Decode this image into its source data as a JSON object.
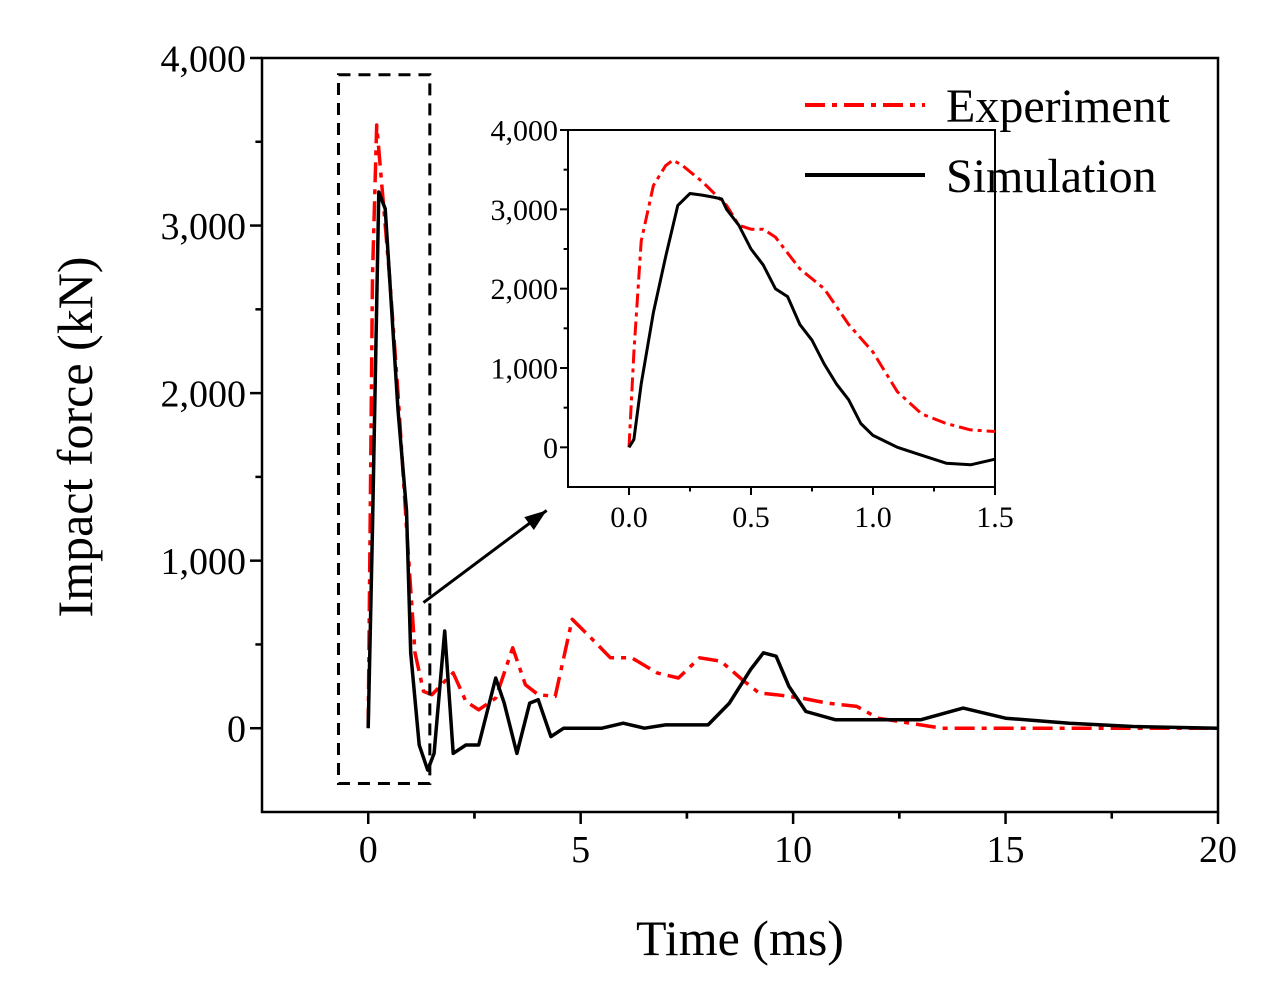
{
  "colors": {
    "experiment": "#ff0000",
    "simulation": "#000000",
    "axis": "#000000",
    "background": "#ffffff"
  },
  "chart_data": [
    {
      "type": "line",
      "role": "main",
      "xlabel": "Time (ms)",
      "ylabel": "Impact force (kN)",
      "xlim": [
        -2.5,
        20
      ],
      "ylim": [
        -500,
        4000
      ],
      "xticks": [
        0,
        5,
        10,
        15,
        20
      ],
      "xtick_labels": [
        "0",
        "5",
        "10",
        "15",
        "20"
      ],
      "yticks": [
        0,
        1000,
        2000,
        3000,
        4000
      ],
      "ytick_labels": [
        "0",
        "1,000",
        "2,000",
        "3,000",
        "4,000"
      ],
      "legend_position": "top-right",
      "legend": [
        "Experiment",
        "Simulation"
      ],
      "series": [
        {
          "name": "Experiment",
          "style": "dash-dot",
          "x": [
            0,
            0.1,
            0.2,
            0.3,
            0.5,
            0.7,
            0.9,
            1.1,
            1.3,
            1.5,
            1.8,
            2.0,
            2.3,
            2.6,
            3.0,
            3.4,
            3.7,
            4.0,
            4.4,
            4.8,
            5.2,
            5.7,
            6.2,
            6.8,
            7.3,
            7.8,
            8.3,
            8.8,
            9.2,
            9.6,
            10.2,
            10.8,
            11.5,
            12.0,
            12.5,
            13.5,
            15.0,
            17.0,
            20.0
          ],
          "y": [
            0,
            2700,
            3600,
            3300,
            2700,
            2000,
            1200,
            450,
            220,
            200,
            280,
            330,
            160,
            110,
            180,
            480,
            260,
            200,
            190,
            650,
            550,
            420,
            420,
            330,
            300,
            420,
            400,
            290,
            210,
            200,
            180,
            150,
            130,
            60,
            40,
            0,
            0,
            0,
            0
          ]
        },
        {
          "name": "Simulation",
          "style": "solid",
          "x": [
            0,
            0.1,
            0.25,
            0.4,
            0.5,
            0.7,
            0.9,
            1.0,
            1.2,
            1.4,
            1.55,
            1.8,
            2.0,
            2.3,
            2.6,
            3.0,
            3.2,
            3.5,
            3.8,
            4.0,
            4.3,
            4.6,
            5.0,
            5.5,
            6.0,
            6.5,
            7.0,
            7.5,
            8.0,
            8.5,
            9.0,
            9.3,
            9.6,
            9.9,
            10.3,
            11.0,
            12.0,
            13.0,
            14.0,
            15.0,
            16.5,
            18.0,
            20.0
          ],
          "y": [
            0,
            1200,
            3200,
            3100,
            2700,
            1900,
            1300,
            450,
            -100,
            -250,
            -150,
            580,
            -150,
            -100,
            -100,
            300,
            150,
            -150,
            150,
            170,
            -50,
            0,
            0,
            0,
            30,
            0,
            20,
            20,
            20,
            150,
            350,
            450,
            430,
            250,
            100,
            50,
            50,
            50,
            120,
            60,
            30,
            10,
            0
          ]
        }
      ],
      "annotations": [
        {
          "type": "dashed-box",
          "x_range": [
            -0.7,
            1.45
          ],
          "y_range": [
            -330,
            3900
          ],
          "label": "zoom region"
        },
        {
          "type": "arrow",
          "from": [
            1.3,
            750
          ],
          "to": [
            4.2,
            1300
          ],
          "label": "points to inset"
        }
      ]
    },
    {
      "type": "line",
      "role": "inset",
      "xlabel": "",
      "ylabel": "",
      "xlim": [
        -0.25,
        1.5
      ],
      "ylim": [
        -500,
        4000
      ],
      "xticks": [
        0.0,
        0.5,
        1.0,
        1.5
      ],
      "xtick_labels": [
        "0.0",
        "0.5",
        "1.0",
        "1.5"
      ],
      "yticks": [
        0,
        1000,
        2000,
        3000,
        4000
      ],
      "ytick_labels": [
        "0",
        "1,000",
        "2,000",
        "3,000",
        "4,000"
      ],
      "series": [
        {
          "name": "Experiment",
          "style": "dash-dot",
          "x": [
            0,
            0.02,
            0.05,
            0.1,
            0.15,
            0.18,
            0.22,
            0.3,
            0.4,
            0.45,
            0.5,
            0.55,
            0.6,
            0.65,
            0.7,
            0.8,
            0.9,
            1.0,
            1.1,
            1.2,
            1.3,
            1.4,
            1.5
          ],
          "y": [
            0,
            1200,
            2600,
            3300,
            3550,
            3620,
            3550,
            3350,
            3050,
            2800,
            2750,
            2750,
            2650,
            2450,
            2250,
            2000,
            1550,
            1200,
            700,
            420,
            300,
            220,
            200
          ]
        },
        {
          "name": "Simulation",
          "style": "solid",
          "x": [
            0,
            0.02,
            0.05,
            0.1,
            0.15,
            0.2,
            0.25,
            0.3,
            0.35,
            0.38,
            0.4,
            0.45,
            0.5,
            0.55,
            0.6,
            0.65,
            0.7,
            0.75,
            0.8,
            0.85,
            0.9,
            0.95,
            1.0,
            1.1,
            1.2,
            1.3,
            1.4,
            1.5
          ],
          "y": [
            0,
            100,
            800,
            1700,
            2400,
            3050,
            3200,
            3180,
            3150,
            3130,
            3000,
            2800,
            2500,
            2300,
            2000,
            1900,
            1550,
            1350,
            1050,
            800,
            600,
            300,
            150,
            0,
            -100,
            -200,
            -220,
            -150
          ]
        }
      ]
    }
  ]
}
